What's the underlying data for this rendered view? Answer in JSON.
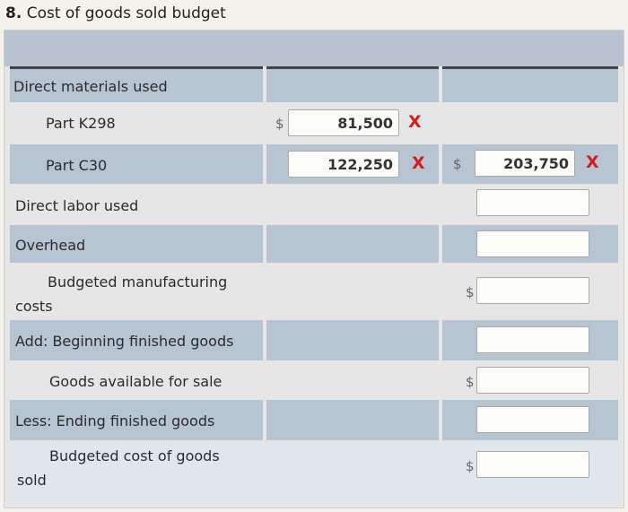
{
  "title": {
    "number": "8.",
    "text": "Cost of goods sold budget"
  },
  "rows": {
    "dm_used": "Direct materials used",
    "part_k298": "Part K298",
    "part_c30": "Part C30",
    "dl_used": "Direct labor used",
    "overhead": "Overhead",
    "bmc_line1": "Budgeted manufacturing",
    "bmc_line2": "costs",
    "add_bfg": "Add: Beginning finished goods",
    "goods_available": "Goods available for sale",
    "less_efg": "Less: Ending finished goods",
    "bcgs_line1": "Budgeted cost of goods",
    "bcgs_line2": "sold"
  },
  "inputs": {
    "part_k298_value": "81,500",
    "part_c30_value": "122,250",
    "dm_total_value": "203,750",
    "dl_value": "",
    "overhead_value": "",
    "bmc_value": "",
    "bfg_value": "",
    "gas_value": "",
    "efg_value": "",
    "bcgs_value": ""
  },
  "symbols": {
    "dollar": "$",
    "x": "X"
  },
  "colors": {
    "error": "#d61c1c",
    "row_shade": "#b7c5d3",
    "header": "#b9c3cf"
  }
}
